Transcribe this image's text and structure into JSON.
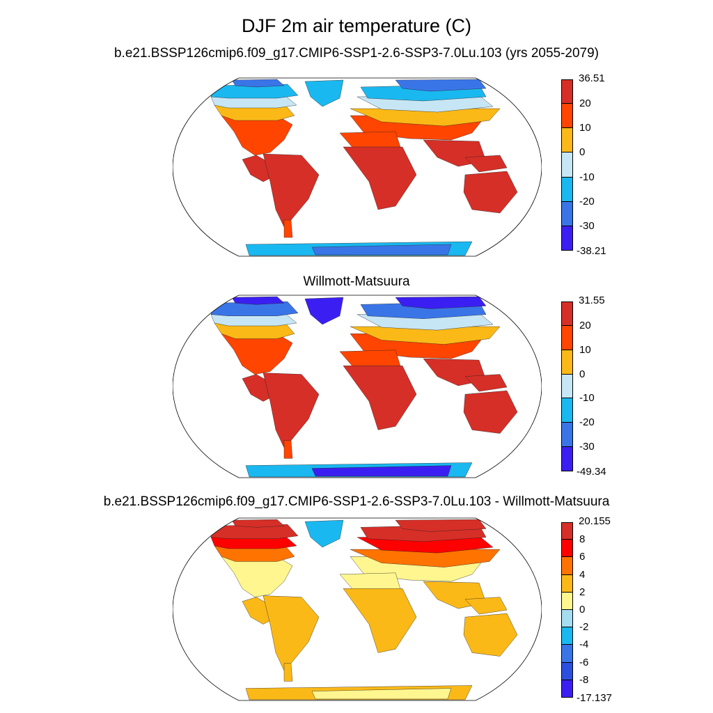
{
  "title": "DJF 2m air temperature (C)",
  "chart_data": [
    {
      "type": "heatmap",
      "title": "b.e21.BSSP126cmip6.f09_g17.CMIP6-SSP1-2.6-SSP3-7.0Lu.103 (yrs 2055-2079)",
      "projection": "Robinson",
      "colorbar": {
        "labels": [
          "36.51",
          "20",
          "10",
          "0",
          "-10",
          "-20",
          "-30",
          "-38.21"
        ],
        "colors": [
          "#d62f27",
          "#ff4500",
          "#fbb917",
          "#c7e6f5",
          "#1ab8f0",
          "#3a75e8",
          "#3b1ff2"
        ]
      },
      "regions": {
        "tropics": "#d62f27",
        "subtropics": "#ff4500",
        "midlat": "#fbb917",
        "high_mid": "#c7e6f5",
        "subarctic": "#1ab8f0",
        "arctic": "#3a75e8",
        "greenland": "#1ab8f0",
        "antarctica_edge": "#1ab8f0",
        "antarctica_interior": "#3a75e8",
        "aus": "#d62f27",
        "sa_tip": "#ff4500"
      }
    },
    {
      "type": "heatmap",
      "title": "Willmott-Matsuura",
      "projection": "Robinson",
      "colorbar": {
        "labels": [
          "31.55",
          "20",
          "10",
          "0",
          "-10",
          "-20",
          "-30",
          "-49.34"
        ],
        "colors": [
          "#d62f27",
          "#ff4500",
          "#fbb917",
          "#c7e6f5",
          "#1ab8f0",
          "#3a75e8",
          "#3b1ff2"
        ]
      },
      "regions": {
        "tropics": "#d62f27",
        "subtropics": "#ff4500",
        "midlat": "#fbb917",
        "high_mid": "#c7e6f5",
        "subarctic": "#3a75e8",
        "arctic": "#3b1ff2",
        "greenland": "#3b1ff2",
        "antarctica_edge": "#1ab8f0",
        "antarctica_interior": "#3b1ff2",
        "aus": "#d62f27",
        "sa_tip": "#ff4500"
      }
    },
    {
      "type": "heatmap",
      "title": "b.e21.BSSP126cmip6.f09_g17.CMIP6-SSP1-2.6-SSP3-7.0Lu.103 - Willmott-Matsuura",
      "projection": "Robinson",
      "colorbar": {
        "labels": [
          "20.155",
          "8",
          "6",
          "4",
          "2",
          "0",
          "-2",
          "-4",
          "-6",
          "-8",
          "-17.137"
        ],
        "colors": [
          "#d62f27",
          "#ff0000",
          "#ff7300",
          "#fbb917",
          "#fff68f",
          "#a6dcf0",
          "#1ab8f0",
          "#3a75e8",
          "#2d4fe0",
          "#3b1ff2"
        ]
      },
      "regions": {
        "tropics": "#fbb917",
        "subtropics": "#fff68f",
        "midlat": "#ff7300",
        "high_mid": "#ff0000",
        "subarctic": "#d62f27",
        "arctic": "#d62f27",
        "greenland": "#1ab8f0",
        "antarctica_edge": "#fbb917",
        "antarctica_interior": "#fff68f",
        "aus": "#fbb917",
        "sa_tip": "#fbb917"
      }
    }
  ]
}
